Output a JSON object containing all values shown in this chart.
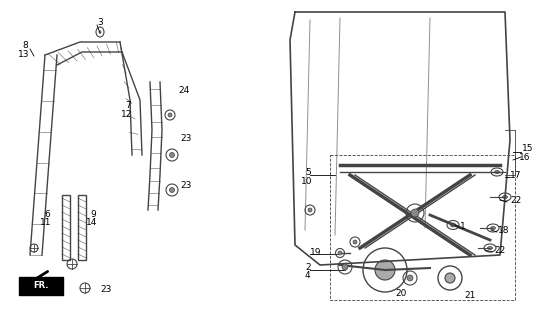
{
  "bg_color": "#ffffff",
  "line_color": "#444444",
  "label_color": "#000000",
  "fig_width": 5.48,
  "fig_height": 3.2,
  "dpi": 100,
  "xlim": [
    0,
    548
  ],
  "ylim": [
    0,
    320
  ]
}
